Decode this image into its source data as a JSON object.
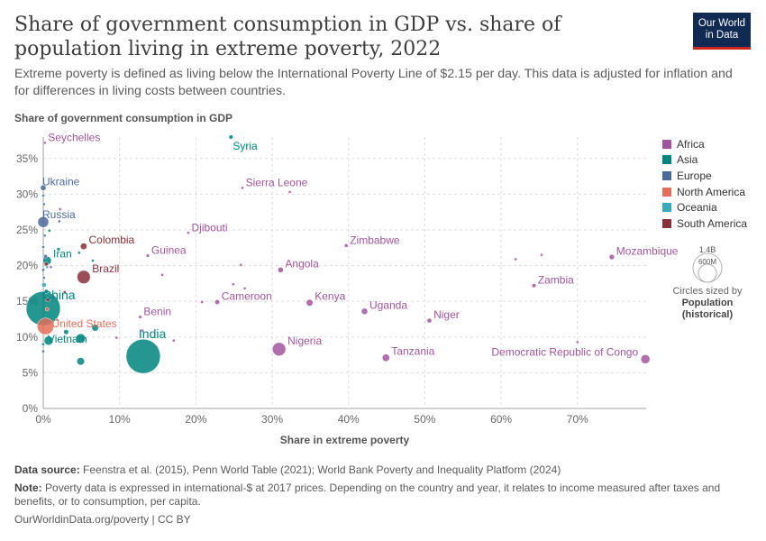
{
  "header": {
    "title": "Share of government consumption in GDP vs. share of population living in extreme poverty, 2022",
    "subtitle": "Extreme poverty is defined as living below the International Poverty Line of $2.15 per day. This data is adjusted for inflation and for differences in living costs between countries.",
    "logo_line1": "Our World",
    "logo_line2": "in Data"
  },
  "legend": {
    "regions": [
      {
        "name": "Africa",
        "color": "#a2559c"
      },
      {
        "name": "Asia",
        "color": "#00847e"
      },
      {
        "name": "Europe",
        "color": "#4c6a9c"
      },
      {
        "name": "North America",
        "color": "#e56e5a"
      },
      {
        "name": "Oceania",
        "color": "#38aaba"
      },
      {
        "name": "South America",
        "color": "#883039"
      }
    ],
    "size_max_label": "1.4B",
    "size_mid_label": "600M",
    "size_caption_1": "Circles sized by",
    "size_caption_2": "Population",
    "size_caption_3": "(historical)"
  },
  "footer": {
    "source_label": "Data source:",
    "source_text": "Feenstra et al. (2015), Penn World Table (2021); World Bank Poverty and Inequality Platform (2024)",
    "note_label": "Note:",
    "note_text": "Poverty data is expressed in international-$ at 2017 prices. Depending on the country and year, it relates to income measured after taxes and benefits, or to consumption, per capita.",
    "credit": "OurWorldinData.org/poverty | CC BY"
  },
  "chart_data": {
    "type": "scatter",
    "xlabel": "Share in extreme poverty",
    "ylabel": "Share of government consumption in GDP",
    "xlim": [
      0,
      79
    ],
    "ylim": [
      0,
      38
    ],
    "x_ticks": [
      "0%",
      "10%",
      "20%",
      "30%",
      "40%",
      "50%",
      "60%",
      "70%"
    ],
    "x_tick_values": [
      0,
      10,
      20,
      30,
      40,
      50,
      60,
      70
    ],
    "y_ticks": [
      "0%",
      "5%",
      "10%",
      "15%",
      "20%",
      "25%",
      "30%",
      "35%"
    ],
    "y_tick_values": [
      0,
      5,
      10,
      15,
      20,
      25,
      30,
      35
    ],
    "grid": true,
    "size_variable": "population_millions",
    "points": [
      {
        "label": "Seychelles",
        "region": "Africa",
        "x": 0.2,
        "y": 37.2,
        "pop": 0.1
      },
      {
        "label": "Syria",
        "region": "Asia",
        "x": 24.6,
        "y": 38.0,
        "pop": 22
      },
      {
        "label": "Sierra Leone",
        "region": "Africa",
        "x": 26.1,
        "y": 30.9,
        "pop": 8.6
      },
      {
        "label": "",
        "region": "Africa",
        "x": 32.3,
        "y": 30.3,
        "pop": 4
      },
      {
        "label": "Ukraine",
        "region": "Europe",
        "x": 0.0,
        "y": 30.9,
        "pop": 39
      },
      {
        "label": "Russia",
        "region": "Europe",
        "x": 0.0,
        "y": 26.1,
        "pop": 144
      },
      {
        "label": "Djibouti",
        "region": "Africa",
        "x": 19.0,
        "y": 24.6,
        "pop": 1.1
      },
      {
        "label": "Colombia",
        "region": "South America",
        "x": 5.3,
        "y": 22.7,
        "pop": 52
      },
      {
        "label": "Zimbabwe",
        "region": "Africa",
        "x": 39.7,
        "y": 22.8,
        "pop": 16
      },
      {
        "label": "Mozambique",
        "region": "Africa",
        "x": 74.5,
        "y": 21.2,
        "pop": 33
      },
      {
        "label": "",
        "region": "Africa",
        "x": 65.3,
        "y": 21.5,
        "pop": 3
      },
      {
        "label": "",
        "region": "Africa",
        "x": 61.9,
        "y": 20.9,
        "pop": 2
      },
      {
        "label": "Guinea",
        "region": "Africa",
        "x": 13.7,
        "y": 21.4,
        "pop": 14
      },
      {
        "label": "Iran",
        "region": "Asia",
        "x": 0.5,
        "y": 20.7,
        "pop": 89
      },
      {
        "label": "Brazil",
        "region": "South America",
        "x": 5.3,
        "y": 18.4,
        "pop": 215
      },
      {
        "label": "Angola",
        "region": "Africa",
        "x": 31.1,
        "y": 19.4,
        "pop": 36
      },
      {
        "label": "",
        "region": "Africa",
        "x": 25.9,
        "y": 20.1,
        "pop": 3
      },
      {
        "label": "",
        "region": "Africa",
        "x": 15.6,
        "y": 18.7,
        "pop": 3
      },
      {
        "label": "Zambia",
        "region": "Africa",
        "x": 64.3,
        "y": 17.2,
        "pop": 20
      },
      {
        "label": "",
        "region": "Africa",
        "x": 24.9,
        "y": 17.4,
        "pop": 3
      },
      {
        "label": "",
        "region": "Africa",
        "x": 26.4,
        "y": 16.8,
        "pop": 2
      },
      {
        "label": "China",
        "region": "Asia",
        "x": 0.0,
        "y": 14.0,
        "pop": 1412
      },
      {
        "label": "Cameroon",
        "region": "Africa",
        "x": 22.8,
        "y": 14.9,
        "pop": 28
      },
      {
        "label": "",
        "region": "Africa",
        "x": 20.8,
        "y": 14.9,
        "pop": 3
      },
      {
        "label": "Kenya",
        "region": "Africa",
        "x": 34.9,
        "y": 14.8,
        "pop": 54
      },
      {
        "label": "Uganda",
        "region": "Africa",
        "x": 42.1,
        "y": 13.6,
        "pop": 47
      },
      {
        "label": "Benin",
        "region": "Africa",
        "x": 12.7,
        "y": 12.8,
        "pop": 13
      },
      {
        "label": "United States",
        "region": "North America",
        "x": 0.3,
        "y": 11.5,
        "pop": 333
      },
      {
        "label": "Niger",
        "region": "Africa",
        "x": 50.6,
        "y": 12.3,
        "pop": 26
      },
      {
        "label": "India",
        "region": "Asia",
        "x": 13.1,
        "y": 7.3,
        "pop": 1417
      },
      {
        "label": "Vietnam",
        "region": "Asia",
        "x": 0.7,
        "y": 9.5,
        "pop": 98
      },
      {
        "label": "Nigeria",
        "region": "Africa",
        "x": 30.9,
        "y": 8.3,
        "pop": 218
      },
      {
        "label": "Democratic Republic of Congo",
        "region": "Africa",
        "x": 78.9,
        "y": 6.9,
        "pop": 99
      },
      {
        "label": "",
        "region": "Africa",
        "x": 70.0,
        "y": 9.3,
        "pop": 2
      },
      {
        "label": "Tanzania",
        "region": "Africa",
        "x": 44.9,
        "y": 7.1,
        "pop": 65
      },
      {
        "label": "",
        "region": "Asia",
        "x": 4.9,
        "y": 6.6,
        "pop": 70
      },
      {
        "label": "",
        "region": "Asia",
        "x": 4.9,
        "y": 9.8,
        "pop": 110
      },
      {
        "label": "",
        "region": "Asia",
        "x": 6.8,
        "y": 11.3,
        "pop": 55
      },
      {
        "label": "",
        "region": "Asia",
        "x": 3.0,
        "y": 10.7,
        "pop": 30
      },
      {
        "label": "",
        "region": "Africa",
        "x": 9.6,
        "y": 9.9,
        "pop": 4
      },
      {
        "label": "",
        "region": "Africa",
        "x": 17.1,
        "y": 9.5,
        "pop": 2
      },
      {
        "label": "",
        "region": "Africa",
        "x": 13.0,
        "y": 10.9,
        "pop": 3
      },
      {
        "label": "",
        "region": "Europe",
        "x": 0.0,
        "y": 29.8,
        "pop": 5
      },
      {
        "label": "",
        "region": "Europe",
        "x": 0.1,
        "y": 28.6,
        "pop": 3
      },
      {
        "label": "",
        "region": "Europe",
        "x": 2.1,
        "y": 26.2,
        "pop": 2
      },
      {
        "label": "",
        "region": "Europe",
        "x": 0.2,
        "y": 24.2,
        "pop": 10
      },
      {
        "label": "",
        "region": "Europe",
        "x": 0.0,
        "y": 22.6,
        "pop": 6
      },
      {
        "label": "",
        "region": "Europe",
        "x": 0.3,
        "y": 21.3,
        "pop": 17
      },
      {
        "label": "",
        "region": "Europe",
        "x": 0.0,
        "y": 19.4,
        "pop": 11
      },
      {
        "label": "",
        "region": "Europe",
        "x": 0.1,
        "y": 18.3,
        "pop": 8
      },
      {
        "label": "",
        "region": "Asia",
        "x": 2.0,
        "y": 22.3,
        "pop": 15
      },
      {
        "label": "",
        "region": "Asia",
        "x": 0.8,
        "y": 24.9,
        "pop": 4
      },
      {
        "label": "",
        "region": "Asia",
        "x": 0.4,
        "y": 16.4,
        "pop": 20
      },
      {
        "label": "",
        "region": "Asia",
        "x": 6.5,
        "y": 20.7,
        "pop": 2
      },
      {
        "label": "",
        "region": "Asia",
        "x": 4.7,
        "y": 21.8,
        "pop": 3
      },
      {
        "label": "",
        "region": "Oceania",
        "x": 0.1,
        "y": 17.3,
        "pop": 26
      },
      {
        "label": "",
        "region": "Oceania",
        "x": 0.5,
        "y": 19.8,
        "pop": 5
      },
      {
        "label": "",
        "region": "South America",
        "x": 0.4,
        "y": 20.2,
        "pop": 20
      },
      {
        "label": "",
        "region": "South America",
        "x": 2.8,
        "y": 16.3,
        "pop": 8
      },
      {
        "label": "",
        "region": "South America",
        "x": 0.6,
        "y": 15.2,
        "pop": 19
      },
      {
        "label": "",
        "region": "North America",
        "x": 0.5,
        "y": 13.9,
        "pop": 17
      },
      {
        "label": "",
        "region": "North America",
        "x": 1.8,
        "y": 12.4,
        "pop": 10
      },
      {
        "label": "",
        "region": "Africa",
        "x": 1.0,
        "y": 19.8,
        "pop": 3
      },
      {
        "label": "",
        "region": "Africa",
        "x": 2.2,
        "y": 27.9,
        "pop": 2
      },
      {
        "label": "",
        "region": "Europe",
        "x": 0.0,
        "y": 8.0,
        "pop": 2
      },
      {
        "label": "",
        "region": "Asia",
        "x": 0.0,
        "y": 9.0,
        "pop": 3
      }
    ]
  }
}
